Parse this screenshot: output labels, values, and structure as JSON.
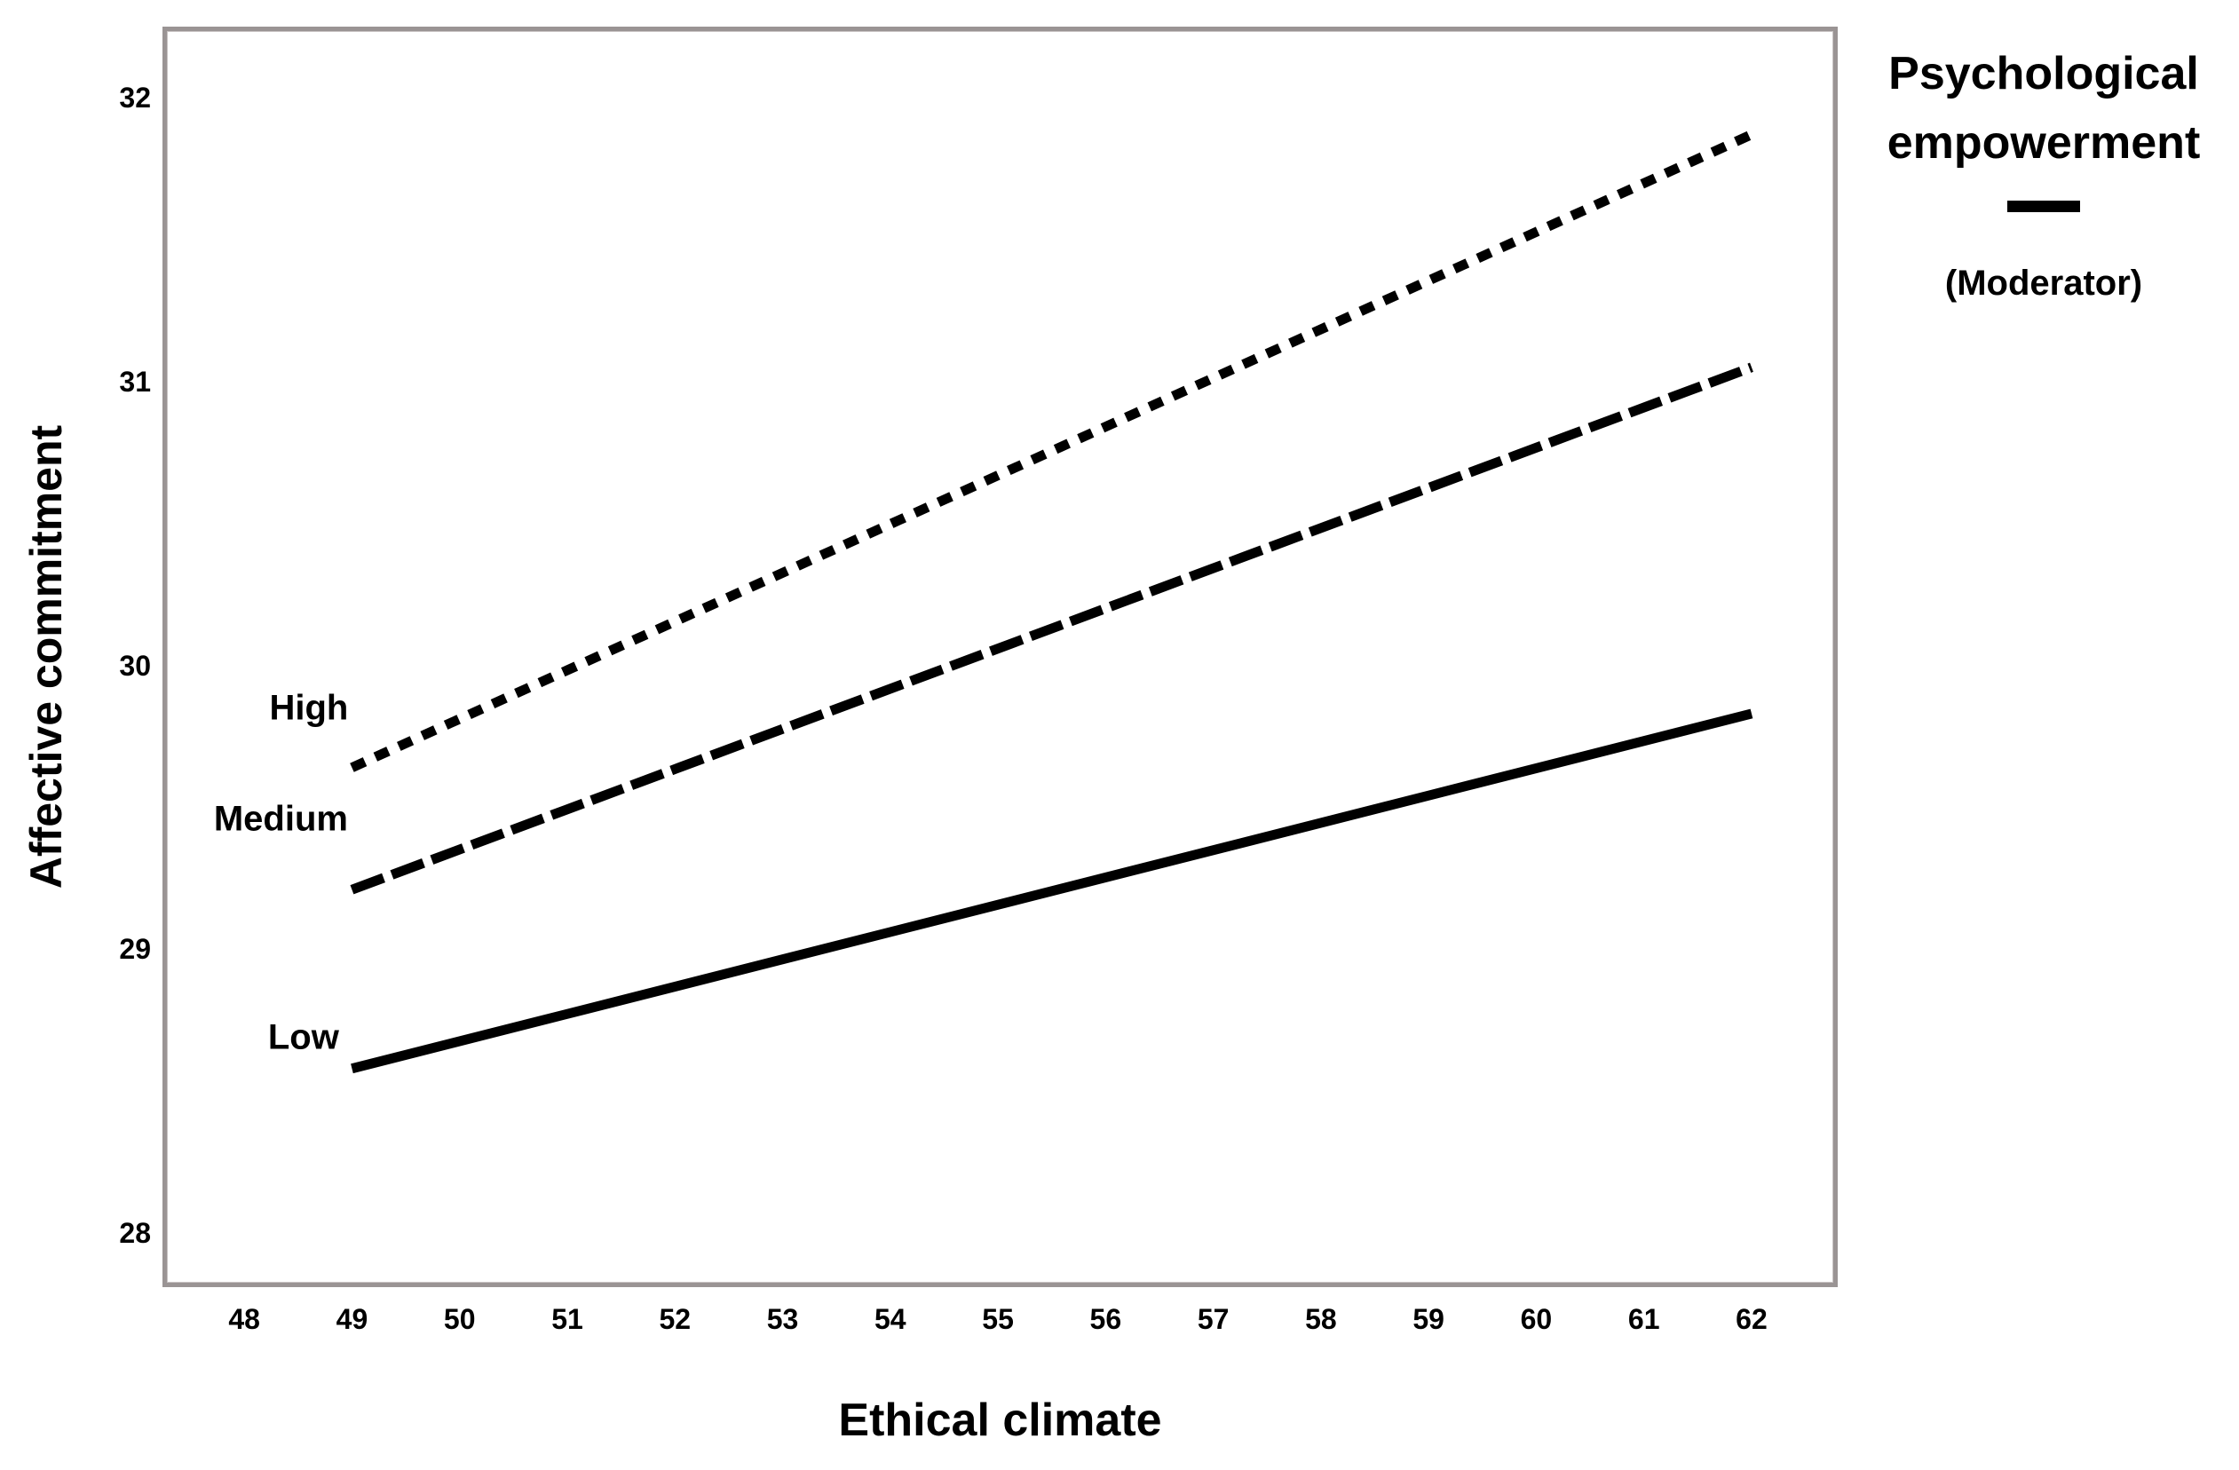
{
  "chart_data": {
    "type": "line",
    "title": "",
    "xlabel": "Ethical climate",
    "ylabel": "Affective commitment",
    "grid": false,
    "x_axis": {
      "min": 47.24,
      "max": 62.8,
      "ticks": [
        48,
        49,
        50,
        51,
        52,
        53,
        54,
        55,
        56,
        57,
        58,
        59,
        60,
        61,
        62
      ]
    },
    "y_axis": {
      "min": 27.81,
      "max": 32.25,
      "ticks": [
        28,
        29,
        30,
        31,
        32
      ]
    },
    "series": [
      {
        "name": "High",
        "style": "dotted",
        "x": [
          49,
          62
        ],
        "values": [
          29.64,
          31.87
        ],
        "label_pos": {
          "x": 48.6,
          "y": 29.85
        }
      },
      {
        "name": "Medium",
        "style": "dashed",
        "x": [
          49,
          62
        ],
        "values": [
          29.21,
          31.05
        ],
        "label_pos": {
          "x": 48.34,
          "y": 29.46
        }
      },
      {
        "name": "Low",
        "style": "solid",
        "x": [
          49,
          62
        ],
        "values": [
          28.58,
          29.83
        ],
        "label_pos": {
          "x": 48.55,
          "y": 28.69
        }
      }
    ],
    "legend": {
      "title": "Psychological empowerment",
      "subtitle": "(Moderator)",
      "position": "top-right",
      "marker": "solid-horizontal-line"
    }
  },
  "colors": {
    "line": "#000000",
    "text": "#000000",
    "frame": "#9a9494",
    "background": "#ffffff"
  }
}
